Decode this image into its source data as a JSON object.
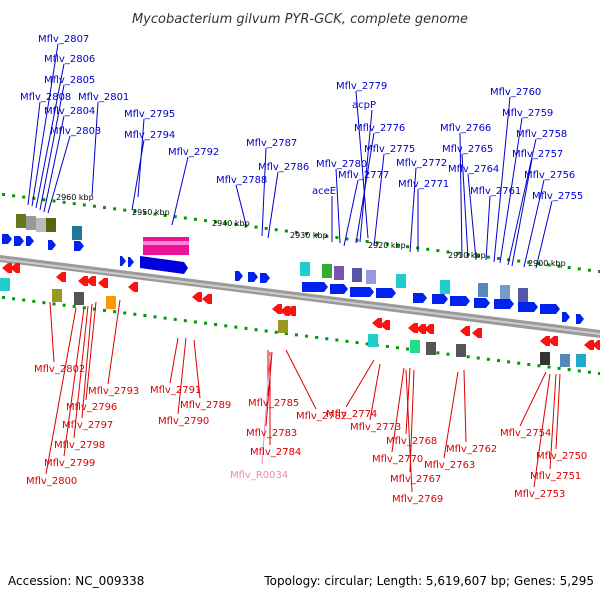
{
  "title": "Mycobacterium gilvum PYR-GCK, complete genome",
  "colors": {
    "forward_label": "#0000cc",
    "reverse_label": "#dd0000",
    "rna_label": "#ee88bb",
    "backbone": "#888888",
    "tick": "#009900"
  },
  "ruler": [
    "2960 kbp",
    "2950 kbp",
    "2940 kbp",
    "2930 kbp",
    "2920 kbp",
    "2910 kbp",
    "2900 kbp"
  ],
  "forward_genes": [
    "Mflv_2807",
    "Mflv_2806",
    "Mflv_2805",
    "Mflv_2808",
    "Mflv_2804",
    "Mflv_2801",
    "Mflv_2803",
    "Mflv_2795",
    "Mflv_2794",
    "Mflv_2792",
    "Mflv_2787",
    "Mflv_2786",
    "Mflv_2788",
    "Mflv_2779",
    "acpP",
    "Mflv_2776",
    "Mflv_2775",
    "Mflv_2780",
    "Mflv_2777",
    "aceE",
    "Mflv_2772",
    "Mflv_2771",
    "Mflv_2766",
    "Mflv_2765",
    "Mflv_2764",
    "Mflv_2761",
    "Mflv_2760",
    "Mflv_2759",
    "Mflv_2758",
    "Mflv_2757",
    "Mflv_2756",
    "Mflv_2755"
  ],
  "reverse_genes": [
    "Mflv_2802",
    "Mflv_2793",
    "Mflv_2796",
    "Mflv_2797",
    "Mflv_2798",
    "Mflv_2799",
    "Mflv_2800",
    "Mflv_2791",
    "Mflv_2789",
    "Mflv_2790",
    "Mflv_2785",
    "Mflv_2782",
    "Mflv_2783",
    "Mflv_2784",
    "Mflv_2774",
    "Mflv_2773",
    "Mflv_2768",
    "Mflv_2770",
    "Mflv_2767",
    "Mflv_2769",
    "Mflv_2762",
    "Mflv_2763",
    "Mflv_2754",
    "Mflv_2750",
    "Mflv_2751",
    "Mflv_2753"
  ],
  "rna_genes": [
    "Mflv_R0034"
  ],
  "footer": {
    "accession": "Accession: NC_009338",
    "topology": "Topology: circular; Length: 5,619,607 bp; Genes: 5,295"
  }
}
